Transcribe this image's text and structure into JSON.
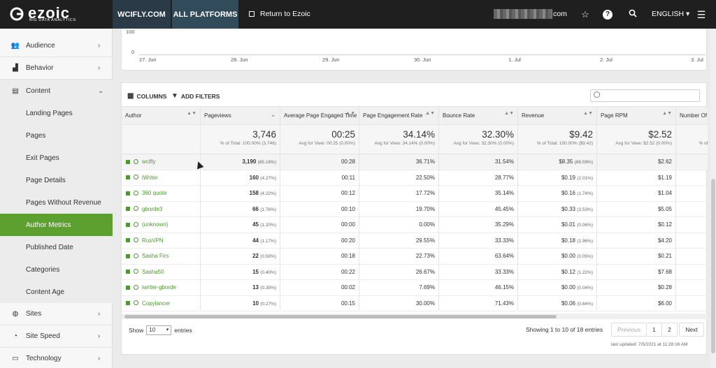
{
  "topbar": {
    "logo_text": "ezoic",
    "logo_sub": "BIG DATA ANALYTICS",
    "site_tab": "WCIFLY.COM",
    "all_platforms": "ALL PLATFORMS",
    "return_label": "Return to Ezoic",
    "user_suffix": "com",
    "language": "ENGLISH ▾",
    "colors": {
      "bar": "#1f1f1f",
      "site_tab": "#2a3b47",
      "all_tab": "#314b5b"
    }
  },
  "sidebar": {
    "accent": "#5da02f",
    "items": [
      {
        "label": "Audience",
        "icon": "users-icon",
        "glyph": "👥",
        "chev": "›"
      },
      {
        "label": "Behavior",
        "icon": "chart-icon",
        "glyph": "▟",
        "chev": "›"
      },
      {
        "label": "Content",
        "icon": "content-icon",
        "glyph": "▤",
        "chev": "⌄"
      },
      {
        "label": "Landing Pages"
      },
      {
        "label": "Pages"
      },
      {
        "label": "Exit Pages"
      },
      {
        "label": "Page Details"
      },
      {
        "label": "Pages Without Revenue"
      },
      {
        "label": "Author Metrics"
      },
      {
        "label": "Published Date"
      },
      {
        "label": "Categories"
      },
      {
        "label": "Content Age"
      },
      {
        "label": "Sites",
        "icon": "globe-icon",
        "glyph": "◍",
        "chev": "›"
      },
      {
        "label": "Site Speed",
        "icon": "speed-icon",
        "glyph": "◔",
        "chev": "›"
      },
      {
        "label": "Technology",
        "icon": "monitor-icon",
        "glyph": "▭",
        "chev": "›"
      }
    ]
  },
  "chart": {
    "y_ticks": [
      "100",
      "0"
    ],
    "x_ticks": [
      "27. Jun",
      "28. Jun",
      "29. Jun",
      "30. Jun",
      "1. Jul",
      "2. Jul",
      "3. Jul"
    ]
  },
  "toolbar": {
    "columns": "COLUMNS",
    "add_filters": "ADD FILTERS",
    "columns_glyph": "▦",
    "filter_glyph": "▼"
  },
  "table": {
    "headers": [
      "Author",
      "Pageviews",
      "Average Page Engaged Time",
      "Page Engagement Rate",
      "Bounce Rate",
      "Revenue",
      "Page RPM",
      "Number Of"
    ],
    "sort_glyph": "▲▼",
    "pageviews_sort": "⌄",
    "summary": [
      {
        "value": "",
        "sub": ""
      },
      {
        "value": "3,746",
        "sub": "% of Total: 100.00% (3,746)"
      },
      {
        "value": "00:25",
        "sub": "Avg for View: 00:25 (0.00%)"
      },
      {
        "value": "34.14%",
        "sub": "Avg for View: 34.14% (0.00%)"
      },
      {
        "value": "32.30%",
        "sub": "Avg for View: 32.30% (0.00%)"
      },
      {
        "value": "$9.42",
        "sub": "% of Total: 100.00% ($9.42)"
      },
      {
        "value": "$2.52",
        "sub": "Avg for View: $2.52 (0.00%)"
      },
      {
        "value": "",
        "sub": "% of To"
      }
    ],
    "rows": [
      {
        "author": "wcifly",
        "pv": "3,190",
        "pv_pct": "(85.16%)",
        "time": "00:28",
        "engage": "36.71%",
        "bounce": "31.54%",
        "rev": "$8.35",
        "rev_pct": "(88.59%)",
        "rpm": "$2.62"
      },
      {
        "author": "iWriter",
        "pv": "160",
        "pv_pct": "(4.27%)",
        "time": "00:11",
        "engage": "22.50%",
        "bounce": "28.77%",
        "rev": "$0.19",
        "rev_pct": "(2.01%)",
        "rpm": "$1.19"
      },
      {
        "author": "360 quote",
        "pv": "158",
        "pv_pct": "(4.22%)",
        "time": "00:12",
        "engage": "17.72%",
        "bounce": "35.14%",
        "rev": "$0.16",
        "rev_pct": "(1.74%)",
        "rpm": "$1.04"
      },
      {
        "author": "gborde3",
        "pv": "66",
        "pv_pct": "(1.76%)",
        "time": "00:10",
        "engage": "19.70%",
        "bounce": "45.45%",
        "rev": "$0.33",
        "rev_pct": "(3.53%)",
        "rpm": "$5.05"
      },
      {
        "author": "(unknown)",
        "pv": "45",
        "pv_pct": "(1.20%)",
        "time": "00:00",
        "engage": "0.00%",
        "bounce": "35.29%",
        "rev": "$0.01",
        "rev_pct": "(0.06%)",
        "rpm": "$0.12"
      },
      {
        "author": "RusVPN",
        "pv": "44",
        "pv_pct": "(1.17%)",
        "time": "00:20",
        "engage": "29.55%",
        "bounce": "33.33%",
        "rev": "$0.18",
        "rev_pct": "(1.96%)",
        "rpm": "$4.20"
      },
      {
        "author": "Sasha Firs",
        "pv": "22",
        "pv_pct": "(0.59%)",
        "time": "00:18",
        "engage": "22.73%",
        "bounce": "63.64%",
        "rev": "$0.00",
        "rev_pct": "(0.05%)",
        "rpm": "$0.21"
      },
      {
        "author": "Sasha50",
        "pv": "15",
        "pv_pct": "(0.40%)",
        "time": "00:22",
        "engage": "26.67%",
        "bounce": "33.33%",
        "rev": "$0.12",
        "rev_pct": "(1.22%)",
        "rpm": "$7.68"
      },
      {
        "author": "iwriter-gborde",
        "pv": "13",
        "pv_pct": "(0.35%)",
        "time": "00:02",
        "engage": "7.69%",
        "bounce": "46.15%",
        "rev": "$0.00",
        "rev_pct": "(0.04%)",
        "rpm": "$0.28"
      },
      {
        "author": "Copylancer",
        "pv": "10",
        "pv_pct": "(0.27%)",
        "time": "00:15",
        "engage": "30.00%",
        "bounce": "71.43%",
        "rev": "$0.06",
        "rev_pct": "(0.64%)",
        "rpm": "$6.00"
      }
    ]
  },
  "footer": {
    "show_label": "Show",
    "show_value": "10",
    "entries_label": "entries",
    "showing": "Showing 1 to 10 of 18 entries",
    "previous": "Previous",
    "page1": "1",
    "page2": "2",
    "next": "Next",
    "last_updated": "last updated: 7/5/2021 at 11:28:16 AM"
  }
}
